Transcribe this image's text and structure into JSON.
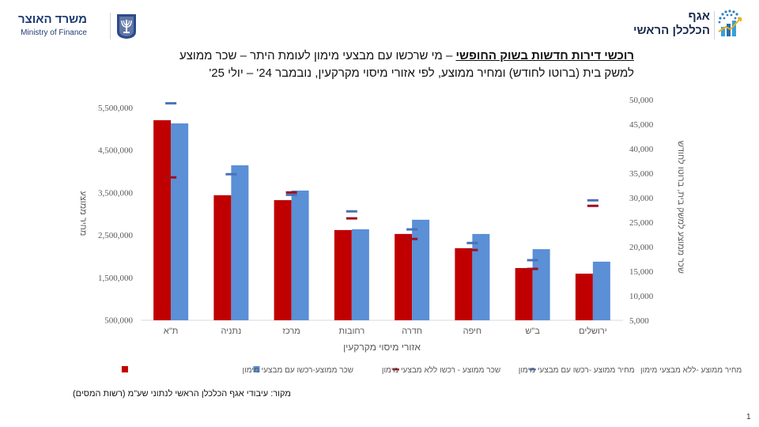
{
  "header": {
    "ministry_he": "משרד האוצר",
    "ministry_en": "Ministry of Finance",
    "dept_line1": "אגף",
    "dept_line2": "הכלכלן הראשי"
  },
  "title": {
    "bold_part": "רוכשי דירות חדשות בשוק החופשי",
    "rest_line1": " – מי שרכשו עם מבצעי מימון לעומת היתר – שכר ממוצע",
    "line2": "למשק בית (ברוטו לחודש) ומחיר ממוצע, לפי אזורי מיסוי מקרקעין, נובמבר 24' – יולי 25'"
  },
  "footer": {
    "source": "מקור: עיבודי אגף הכלכלן הראשי לנתוני שע\"מ (רשות המסים)",
    "page_number": "1"
  },
  "colors": {
    "red": "#c00000",
    "blue": "#5b8fd6",
    "marker_blue": "#4a72b8",
    "marker_red": "#a01020",
    "axis_text": "#595959",
    "axis_line": "#d9d9d9"
  },
  "chart_data": {
    "type": "bar",
    "title": "",
    "xlabel": "אזורי מיסוי מקרקעין",
    "ylabel_left": "מחיר ממוצע",
    "ylabel_right": "שכר ממוצע למשק בית, ברוטו לחודש",
    "categories": [
      "ת\"א",
      "נתניה",
      "מרכז",
      "רחובות",
      "חדרה",
      "חיפה",
      "ב\"ש",
      "ירושלים"
    ],
    "ylim_left": [
      500000,
      5500000
    ],
    "yticks_left": [
      "5,500,000",
      "4,500,000",
      "3,500,000",
      "2,500,000",
      "1,500,000",
      "500,000"
    ],
    "yticks_left_values": [
      5500000,
      4500000,
      3500000,
      2500000,
      1500000,
      500000
    ],
    "ylim_right": [
      5000,
      50000
    ],
    "yticks_right": [
      "50,000",
      "45,000",
      "40,000",
      "35,000",
      "30,000",
      "25,000",
      "20,000",
      "15,000",
      "10,000",
      "5,000"
    ],
    "yticks_right_values": [
      50000,
      45000,
      40000,
      35000,
      30000,
      25000,
      20000,
      15000,
      10000,
      5000
    ],
    "grid": false,
    "legend_position": "bottom",
    "series": [
      {
        "name": "שכר ממוצע-רכשו עם מבצעי מימון",
        "kind": "bar",
        "axis": "right",
        "color": "#c00000",
        "values": [
          45800,
          30500,
          29500,
          23400,
          22600,
          19700,
          15650,
          14500
        ]
      },
      {
        "name": "שכר ממוצע - רכשו ללא מבצעי מימון",
        "kind": "bar",
        "axis": "right",
        "color": "#5b8fd6",
        "values": [
          45150,
          36600,
          31450,
          23550,
          25500,
          22600,
          19500,
          16950
        ]
      },
      {
        "name": "מחיר ממוצע -רכשו עם מבצעי מימון",
        "kind": "marker",
        "axis": "left",
        "color": "#a01020",
        "values": [
          3855000,
          null,
          3500000,
          2890000,
          2405000,
          2145000,
          1700000,
          3185000
        ]
      },
      {
        "name": "מחיר ממוצע -ללא מבצעי מימון",
        "kind": "marker",
        "axis": "left",
        "color": "#4a72b8",
        "values": [
          5600000,
          3930000,
          3445000,
          3055000,
          2630000,
          2310000,
          1905000,
          3315000
        ]
      }
    ],
    "legend_order": [
      3,
      2,
      1,
      0
    ]
  }
}
